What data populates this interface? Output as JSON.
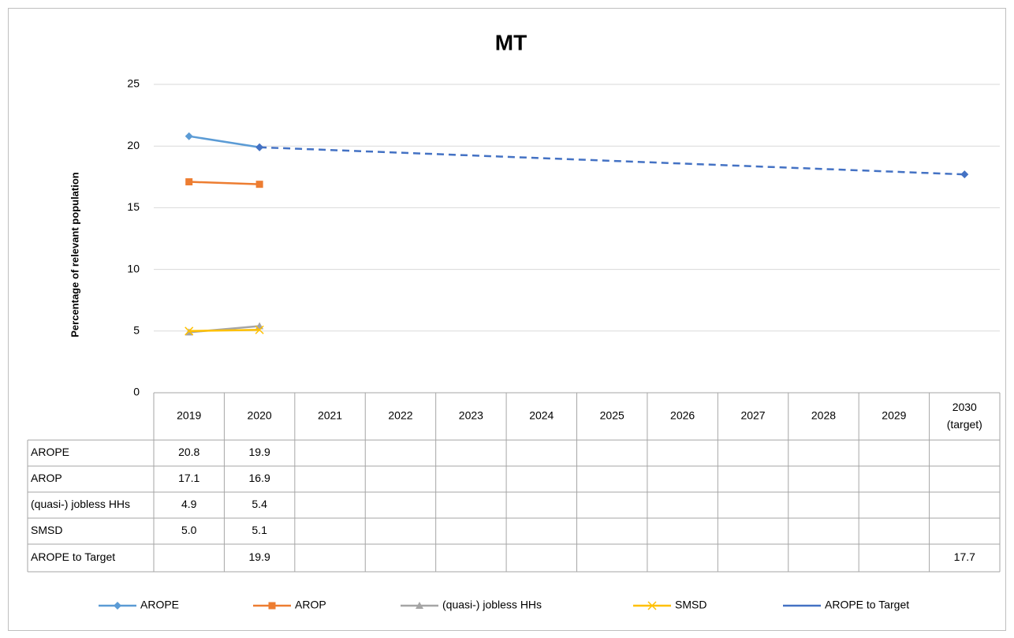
{
  "chart_data": {
    "type": "line",
    "title": "MT",
    "y_label": "Percentage of relevant population",
    "categories": [
      "2019",
      "2020",
      "2021",
      "2022",
      "2023",
      "2024",
      "2025",
      "2026",
      "2027",
      "2028",
      "2029",
      "2030\n(target)"
    ],
    "ylim": [
      0,
      25
    ],
    "yticks": [
      0,
      5,
      10,
      15,
      20,
      25
    ],
    "grid": true,
    "legend": "bottom",
    "series": [
      {
        "name": "AROPE",
        "color": "#5b9bd5",
        "marker": "diamond",
        "values": [
          20.8,
          19.9,
          null,
          null,
          null,
          null,
          null,
          null,
          null,
          null,
          null,
          null
        ]
      },
      {
        "name": "AROP",
        "color": "#ed7d31",
        "marker": "square",
        "values": [
          17.1,
          16.9,
          null,
          null,
          null,
          null,
          null,
          null,
          null,
          null,
          null,
          null
        ]
      },
      {
        "name": "(quasi-) jobless HHs",
        "color": "#a5a5a5",
        "marker": "triangle",
        "values": [
          4.9,
          5.4,
          null,
          null,
          null,
          null,
          null,
          null,
          null,
          null,
          null,
          null
        ]
      },
      {
        "name": "SMSD",
        "color": "#ffc000",
        "marker": "x",
        "values": [
          5.0,
          5.1,
          null,
          null,
          null,
          null,
          null,
          null,
          null,
          null,
          null,
          null
        ],
        "value_labels": [
          "5.0",
          "5.1",
          null,
          null,
          null,
          null,
          null,
          null,
          null,
          null,
          null,
          null
        ]
      },
      {
        "name": "AROPE to Target",
        "color": "#4472c4",
        "marker": "diamond",
        "dashed": true,
        "connect_gaps": true,
        "values": [
          null,
          19.9,
          null,
          null,
          null,
          null,
          null,
          null,
          null,
          null,
          null,
          17.7
        ]
      }
    ]
  }
}
